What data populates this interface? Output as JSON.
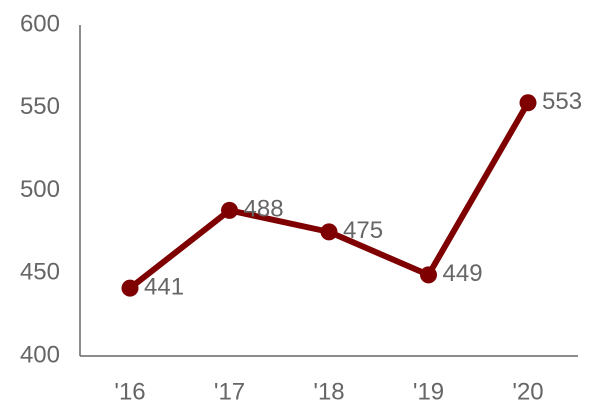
{
  "chart_data": {
    "type": "line",
    "categories": [
      "'16",
      "'17",
      "'18",
      "'19",
      "'20"
    ],
    "series": [
      {
        "values": [
          441,
          488,
          475,
          449,
          553
        ],
        "color": "#7f0000"
      }
    ],
    "data_labels": [
      "441",
      "488",
      "475",
      "449",
      "553"
    ],
    "yticks": [
      400,
      450,
      500,
      550,
      600
    ],
    "ylim": [
      400,
      600
    ],
    "title": "",
    "xlabel": "",
    "ylabel": "",
    "grid": false,
    "legend": "none",
    "axis_color": "#666666",
    "text_color": "#666666"
  }
}
